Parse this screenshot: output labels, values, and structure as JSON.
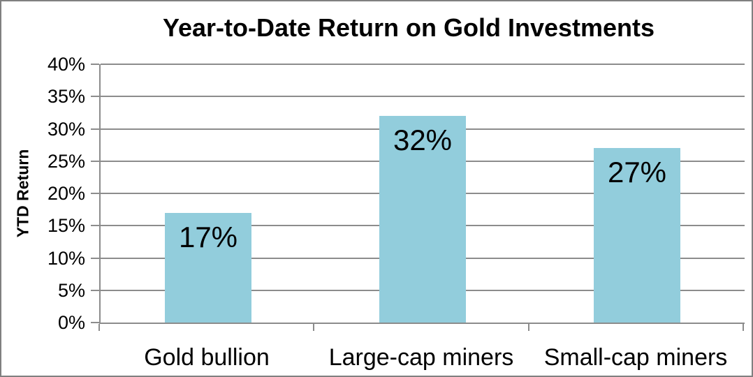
{
  "chart_data": {
    "type": "bar",
    "title": "Year-to-Date Return on Gold Investments",
    "ylabel": "YTD Return",
    "xlabel": "",
    "categories": [
      "Gold bullion",
      "Large-cap miners",
      "Small-cap miners"
    ],
    "values": [
      17,
      32,
      27
    ],
    "data_labels": [
      "17%",
      "32%",
      "27%"
    ],
    "ylim": [
      0,
      40
    ],
    "ytick_step": 5,
    "ytick_labels": [
      "0%",
      "5%",
      "10%",
      "15%",
      "20%",
      "25%",
      "30%",
      "35%",
      "40%"
    ],
    "grid": "horizontal",
    "legend_position": "none",
    "colors": {
      "bar_fill": "#92CDDC",
      "axis": "#8C8C8C",
      "text": "#000000",
      "background": "#FFFFFF",
      "frame_border": "#808080"
    }
  }
}
